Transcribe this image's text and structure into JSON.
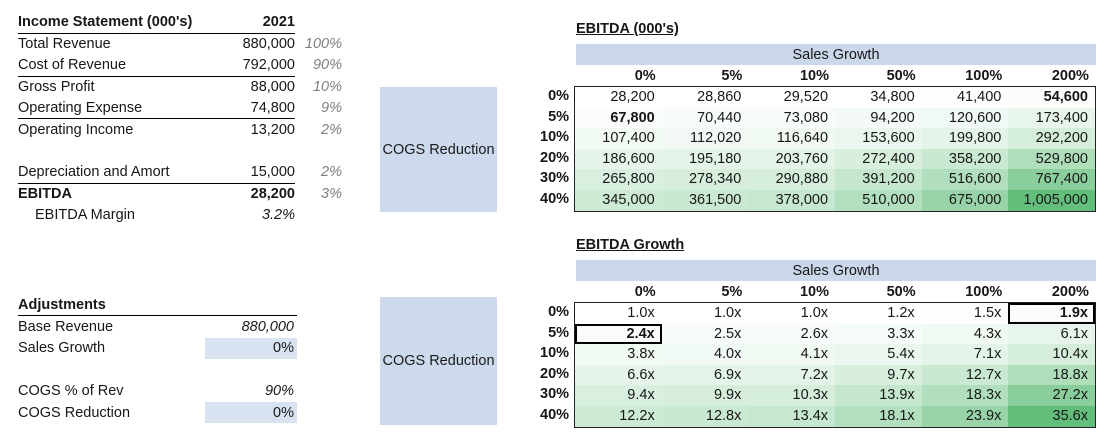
{
  "income_statement": {
    "title": "Income Statement (000's)",
    "year": "2021",
    "rows": [
      {
        "label": "Total Revenue",
        "value": "880,000",
        "pct": "100%"
      },
      {
        "label": "Cost of Revenue",
        "value": "792,000",
        "pct": "90%",
        "border_bottom": true
      },
      {
        "label": "Gross Profit",
        "value": "88,000",
        "pct": "10%"
      },
      {
        "label": "Operating Expense",
        "value": "74,800",
        "pct": "9%",
        "border_bottom": true
      },
      {
        "label": "Operating Income",
        "value": "13,200",
        "pct": "2%"
      },
      {
        "label": "",
        "value": "",
        "pct": ""
      },
      {
        "label": "Depreciation and Amort",
        "value": "15,000",
        "pct": "2%",
        "border_bottom": true
      },
      {
        "label": "EBITDA",
        "value": "28,200",
        "pct": "3%",
        "bold": true
      },
      {
        "label": "EBITDA Margin",
        "value": "3.2%",
        "pct": "",
        "indent": true,
        "italic_value": true
      }
    ]
  },
  "adjustments": {
    "title": "Adjustments",
    "rows": [
      {
        "label": "Base Revenue",
        "value": "880,000",
        "italic": true
      },
      {
        "label": "Sales Growth",
        "value": "0%",
        "input": true
      },
      {
        "label": "",
        "value": ""
      },
      {
        "label": "COGS % of Rev",
        "value": "90%",
        "italic": true
      },
      {
        "label": "COGS Reduction",
        "value": "0%",
        "input": true
      }
    ]
  },
  "cogs_boxes": {
    "label": "COGS Reduction"
  },
  "chart_data": [
    {
      "type": "heatmap",
      "title": "EBITDA (000's)",
      "col_group": "Sales Growth",
      "row_group": "COGS Reduction",
      "columns": [
        "0%",
        "5%",
        "10%",
        "50%",
        "100%",
        "200%"
      ],
      "row_labels": [
        "0%",
        "5%",
        "10%",
        "20%",
        "30%",
        "40%"
      ],
      "rows": [
        [
          "28,200",
          "28,860",
          "29,520",
          "34,800",
          "41,400",
          "54,600"
        ],
        [
          "67,800",
          "70,440",
          "73,080",
          "94,200",
          "120,600",
          "173,400"
        ],
        [
          "107,400",
          "112,020",
          "116,640",
          "153,600",
          "199,800",
          "292,200"
        ],
        [
          "186,600",
          "195,180",
          "203,760",
          "272,400",
          "358,200",
          "529,800"
        ],
        [
          "265,800",
          "278,340",
          "290,880",
          "391,200",
          "516,600",
          "767,400"
        ],
        [
          "345,000",
          "361,500",
          "378,000",
          "510,000",
          "675,000",
          "1,005,000"
        ]
      ],
      "bold_cells": [
        [
          0,
          5
        ],
        [
          1,
          0
        ]
      ],
      "boxed_cells": [],
      "color_scale": {
        "min_color": "#FFFFFF",
        "max_color": "#63BE7B"
      }
    },
    {
      "type": "heatmap",
      "title": "EBITDA Growth",
      "col_group": "Sales Growth",
      "row_group": "COGS Reduction",
      "columns": [
        "0%",
        "5%",
        "10%",
        "50%",
        "100%",
        "200%"
      ],
      "row_labels": [
        "0%",
        "5%",
        "10%",
        "20%",
        "30%",
        "40%"
      ],
      "rows": [
        [
          "1.0x",
          "1.0x",
          "1.0x",
          "1.2x",
          "1.5x",
          "1.9x"
        ],
        [
          "2.4x",
          "2.5x",
          "2.6x",
          "3.3x",
          "4.3x",
          "6.1x"
        ],
        [
          "3.8x",
          "4.0x",
          "4.1x",
          "5.4x",
          "7.1x",
          "10.4x"
        ],
        [
          "6.6x",
          "6.9x",
          "7.2x",
          "9.7x",
          "12.7x",
          "18.8x"
        ],
        [
          "9.4x",
          "9.9x",
          "10.3x",
          "13.9x",
          "18.3x",
          "27.2x"
        ],
        [
          "12.2x",
          "12.8x",
          "13.4x",
          "18.1x",
          "23.9x",
          "35.6x"
        ]
      ],
      "bold_cells": [
        [
          0,
          5
        ],
        [
          1,
          0
        ]
      ],
      "boxed_cells": [
        [
          0,
          5
        ],
        [
          1,
          0
        ]
      ],
      "color_scale": {
        "min_color": "#FFFFFF",
        "max_color": "#63BE7B"
      }
    }
  ],
  "colors": {
    "input_cell_blue": "#D9E2F1",
    "band_blue": "#CBD7EB",
    "box_blue": "#CDD9EC",
    "heatmap_green_max": "#63BE7B",
    "muted_text": "#7f7f7f"
  }
}
